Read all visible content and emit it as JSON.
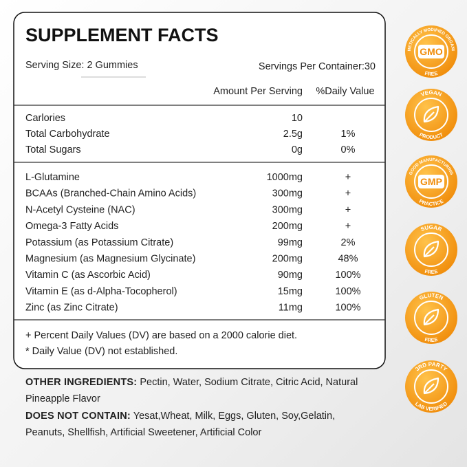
{
  "facts": {
    "title": "SUPPLEMENT FACTS",
    "serving_size": "Serving Size: 2 Gummies",
    "servings_per_container": "Servings Per Container:30",
    "column_headers": [
      "Amount Per Serving",
      "%Daily Value"
    ],
    "groups": [
      [
        {
          "name": "Carlories",
          "amount": "10"
        },
        {
          "name": "Total Carbohydrate",
          "amount": "2.5g",
          "dv": "1%"
        },
        {
          "name": "Total Sugars",
          "amount": "0g",
          "dv": "0%"
        }
      ],
      [
        {
          "name": "L-Glutamine",
          "amount": "1000mg",
          "dv": "+"
        },
        {
          "name": "BCAAs (Branched-Chain Amino Acids)",
          "amount": "300mg",
          "dv": "+"
        },
        {
          "name": "N-Acetyl Cysteine (NAC)",
          "amount": "300mg",
          "dv": "+"
        },
        {
          "name": "Omega-3 Fatty Acids",
          "amount": "200mg",
          "dv": "+"
        },
        {
          "name": "Potassium (as Potassium Citrate)",
          "amount": "99mg",
          "dv": "2%"
        },
        {
          "name": "Magnesium (as Magnesium Glycinate)",
          "amount": "200mg",
          "dv": "48%"
        },
        {
          "name": "Vitamin C (as Ascorbic Acid)",
          "amount": "90mg",
          "dv": "100%"
        },
        {
          "name": "Vitamin E (as d-Alpha-Tocopherol)",
          "amount": "15mg",
          "dv": "100%"
        },
        {
          "name": "Zinc (as Zinc Citrate)",
          "amount": "11mg",
          "dv": "100%"
        }
      ]
    ],
    "footnotes": [
      "+ Percent Daily Values (DV) are based on a 2000 calorie diet.",
      "* Daily Value (DV) not established."
    ]
  },
  "other_ingredients": {
    "label": "OTHER INGREDIENTS:",
    "text": "Pectin, Water, Sodium Citrate, Citric Acid, Natural Pineapple Flavor"
  },
  "does_not_contain": {
    "label": "DOES NOT CONTAIN:",
    "text": "Yesat,Wheat, Milk, Eggs, Gluten, Soy,Gelatin, Peanuts, Shellfish, Artificial Sweetener, Artificial Color"
  },
  "badges": [
    {
      "top": "GENETICALLY MODIFIED ORGANISM",
      "middle": "GMO",
      "bottom": "FREE"
    },
    {
      "top": "VEGAN",
      "bottom": "PRODUCT"
    },
    {
      "top": "GOOD MANUFACTURING",
      "middle": "GMP",
      "bottom": "PRACTICE"
    },
    {
      "top": "SUGAR",
      "bottom": "FREE"
    },
    {
      "top": "GLUTEN",
      "bottom": "FREE"
    },
    {
      "top": "3RD PARTY",
      "bottom": "LAB VERIFIED"
    }
  ]
}
